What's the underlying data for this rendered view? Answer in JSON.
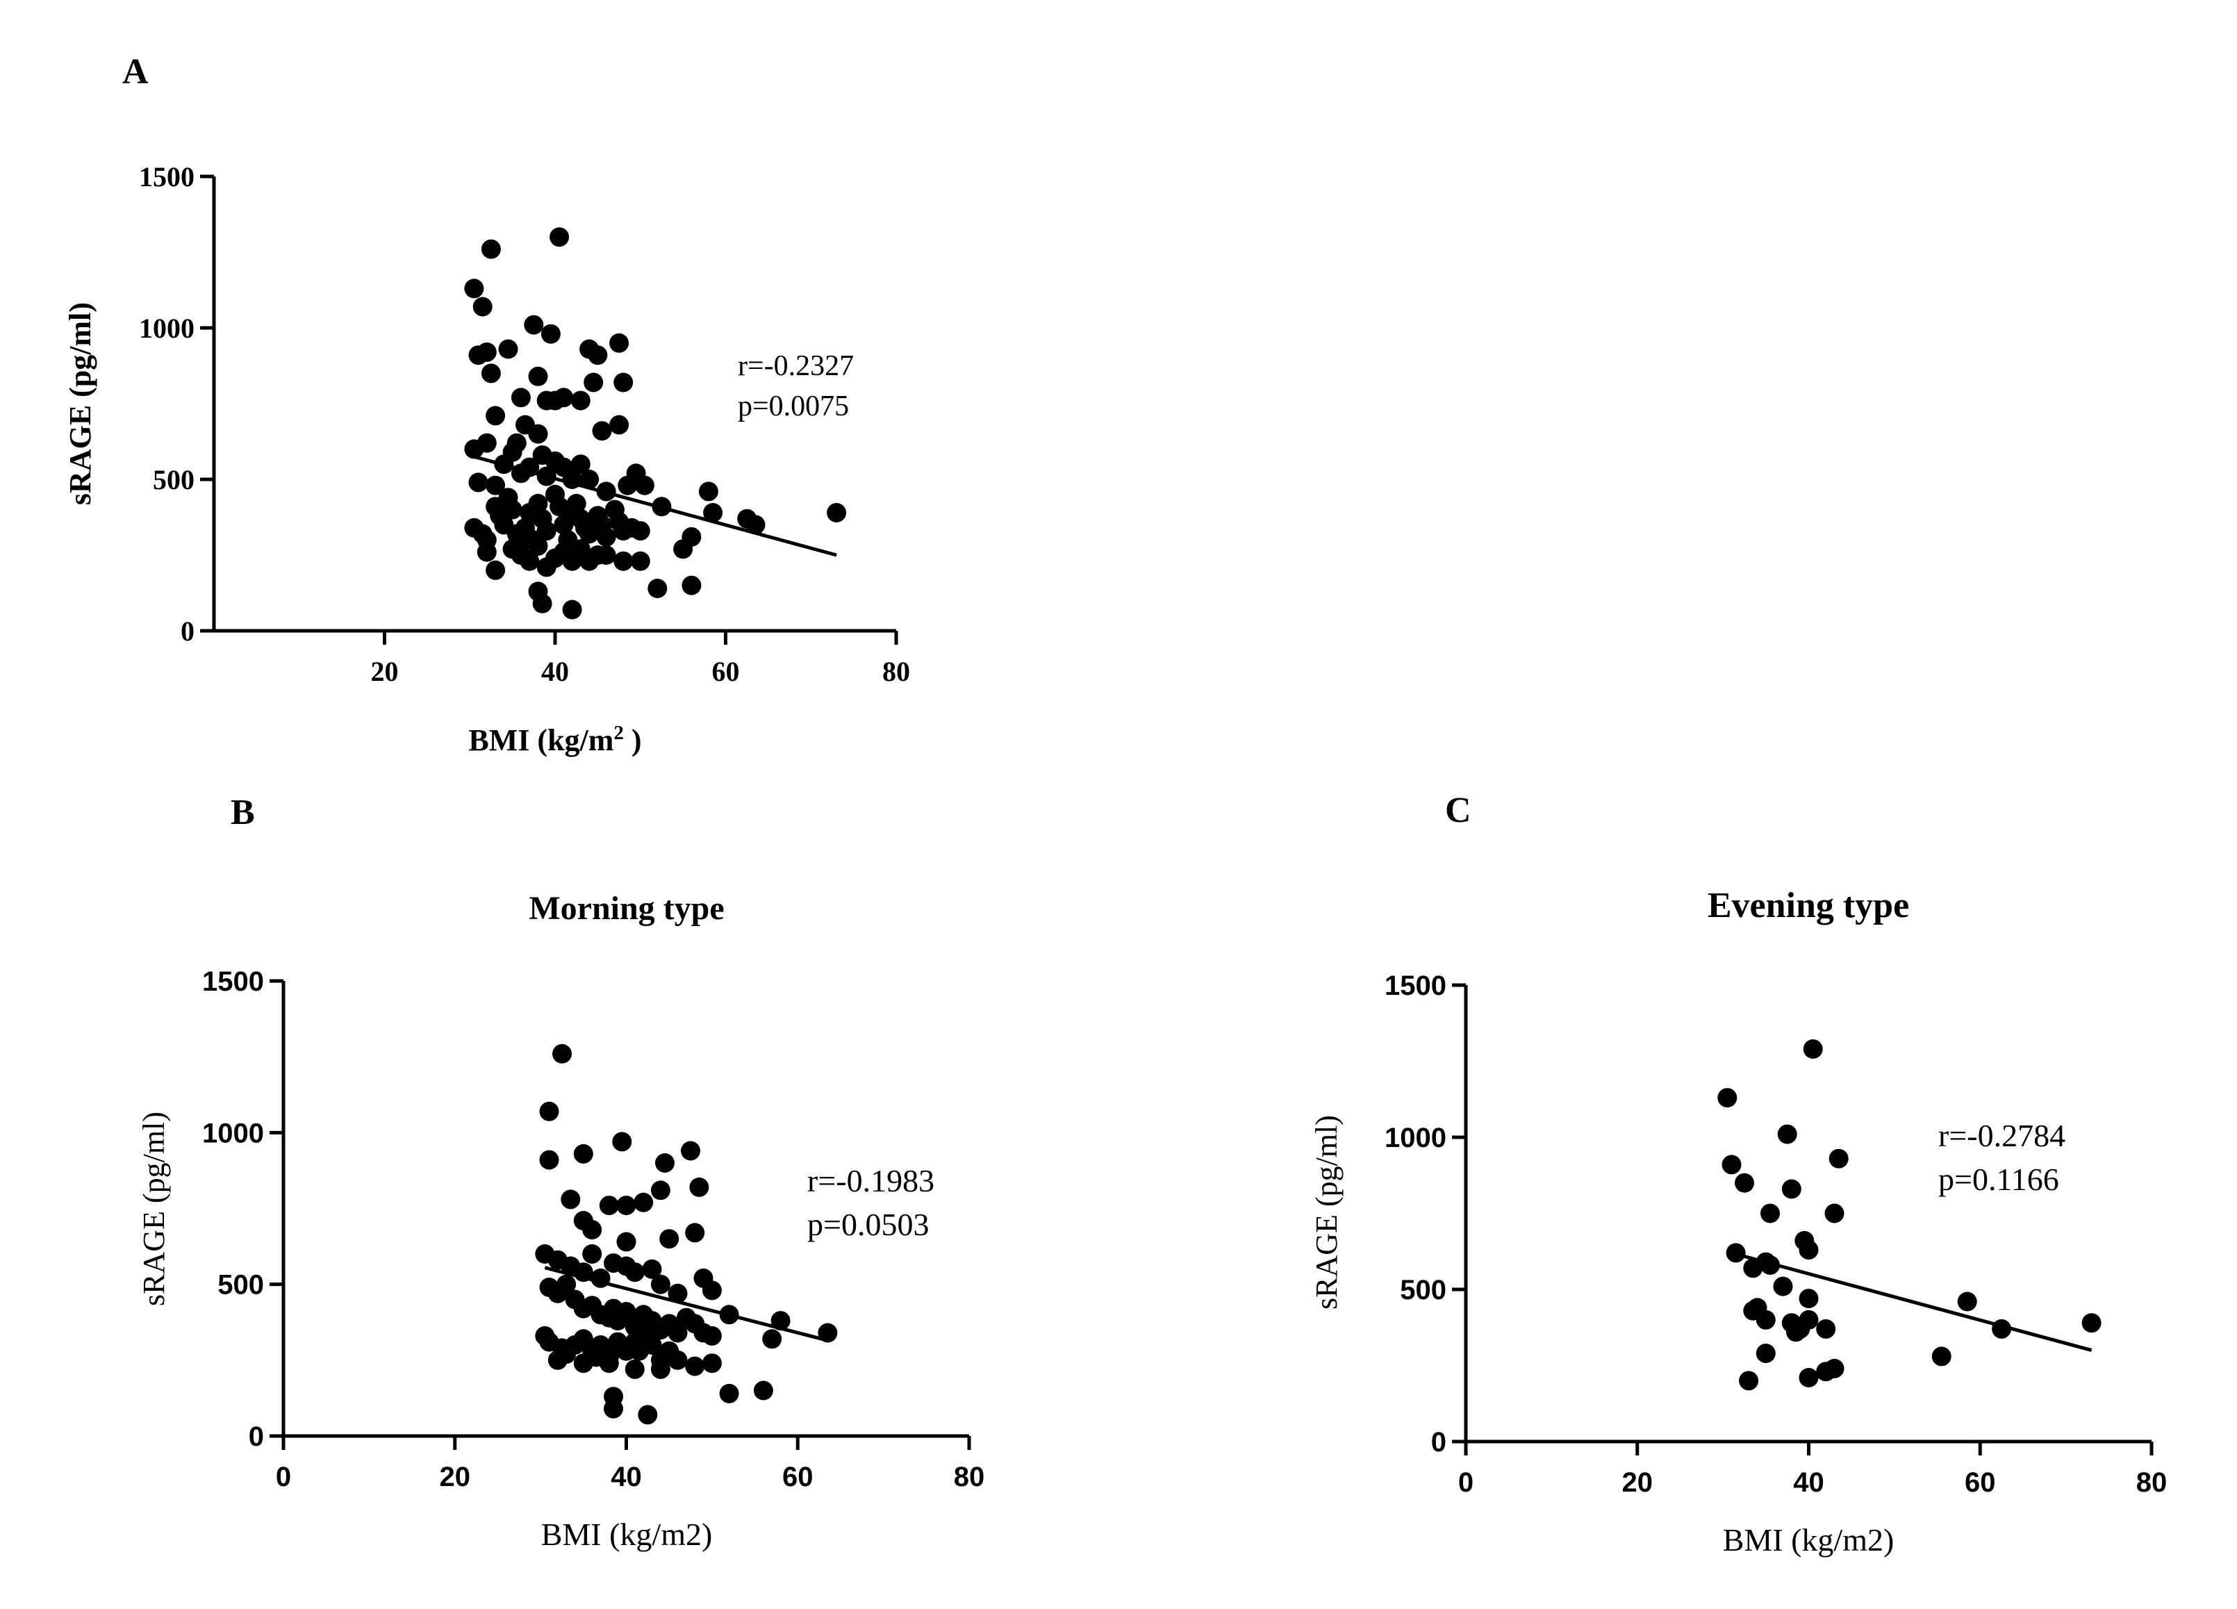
{
  "chart_data": [
    {
      "panel": "A",
      "type": "scatter",
      "title": "",
      "xlabel": "BMI (kg/m",
      "xlabel_sup": "2",
      "xlabel_end": " )",
      "ylabel": "sRAGE (pg/ml)",
      "xlim": [
        0,
        80
      ],
      "ylim": [
        0,
        1500
      ],
      "xticks": [
        20,
        40,
        60,
        80
      ],
      "yticks": [
        0,
        500,
        1000,
        1500
      ],
      "stats": [
        "r=-0.2327",
        "p=0.0075"
      ],
      "regression": {
        "x": [
          30.5,
          73
        ],
        "y": [
          575,
          250
        ]
      },
      "points": [
        [
          30.5,
          1130
        ],
        [
          31,
          910
        ],
        [
          31.5,
          1070
        ],
        [
          32.5,
          1260
        ],
        [
          32,
          920
        ],
        [
          32.5,
          850
        ],
        [
          33,
          710
        ],
        [
          34.5,
          930
        ],
        [
          37.5,
          1010
        ],
        [
          39.5,
          980
        ],
        [
          40.5,
          1300
        ],
        [
          38,
          840
        ],
        [
          36,
          770
        ],
        [
          36.5,
          680
        ],
        [
          39,
          760
        ],
        [
          40,
          760
        ],
        [
          41,
          770
        ],
        [
          43,
          760
        ],
        [
          44,
          930
        ],
        [
          45,
          910
        ],
        [
          47.5,
          950
        ],
        [
          44.5,
          820
        ],
        [
          48,
          820
        ],
        [
          47.5,
          680
        ],
        [
          45.5,
          660
        ],
        [
          30.5,
          600
        ],
        [
          31,
          490
        ],
        [
          32,
          620
        ],
        [
          33,
          480
        ],
        [
          34,
          550
        ],
        [
          35,
          590
        ],
        [
          35.5,
          620
        ],
        [
          36,
          520
        ],
        [
          37,
          540
        ],
        [
          38,
          650
        ],
        [
          38.5,
          580
        ],
        [
          39,
          510
        ],
        [
          40,
          560
        ],
        [
          41,
          540
        ],
        [
          42,
          500
        ],
        [
          43,
          550
        ],
        [
          44,
          500
        ],
        [
          46,
          460
        ],
        [
          48.5,
          480
        ],
        [
          49.5,
          520
        ],
        [
          50.5,
          480
        ],
        [
          52.5,
          410
        ],
        [
          58,
          460
        ],
        [
          58.5,
          390
        ],
        [
          62.5,
          370
        ],
        [
          63.5,
          350
        ],
        [
          73,
          390
        ],
        [
          30.5,
          340
        ],
        [
          31.5,
          320
        ],
        [
          32,
          300
        ],
        [
          33,
          410
        ],
        [
          33.5,
          380
        ],
        [
          34,
          350
        ],
        [
          34.5,
          440
        ],
        [
          35,
          400
        ],
        [
          35.5,
          320
        ],
        [
          36,
          290
        ],
        [
          36.5,
          340
        ],
        [
          37,
          390
        ],
        [
          37.5,
          300
        ],
        [
          38,
          420
        ],
        [
          38.5,
          370
        ],
        [
          39,
          330
        ],
        [
          40,
          450
        ],
        [
          40.5,
          410
        ],
        [
          41,
          350
        ],
        [
          41.5,
          300
        ],
        [
          42,
          390
        ],
        [
          42.5,
          420
        ],
        [
          43,
          370
        ],
        [
          43.5,
          340
        ],
        [
          44,
          320
        ],
        [
          45,
          380
        ],
        [
          45.5,
          350
        ],
        [
          46,
          310
        ],
        [
          47,
          400
        ],
        [
          47.5,
          360
        ],
        [
          48,
          330
        ],
        [
          49,
          340
        ],
        [
          50,
          330
        ],
        [
          32,
          260
        ],
        [
          33,
          200
        ],
        [
          35,
          270
        ],
        [
          36,
          250
        ],
        [
          37,
          230
        ],
        [
          38,
          280
        ],
        [
          39,
          210
        ],
        [
          40,
          240
        ],
        [
          41,
          260
        ],
        [
          42,
          230
        ],
        [
          43,
          270
        ],
        [
          44,
          230
        ],
        [
          45,
          250
        ],
        [
          46,
          250
        ],
        [
          48,
          230
        ],
        [
          50,
          230
        ],
        [
          55,
          270
        ],
        [
          56,
          310
        ],
        [
          38,
          130
        ],
        [
          38.5,
          90
        ],
        [
          42,
          70
        ],
        [
          52,
          140
        ],
        [
          56,
          150
        ]
      ]
    },
    {
      "panel": "B",
      "type": "scatter",
      "title": "Morning type",
      "xlabel": "BMI (kg/m2)",
      "ylabel": "sRAGE (pg/ml)",
      "xlim": [
        0,
        80
      ],
      "ylim": [
        0,
        1500
      ],
      "xticks": [
        0,
        20,
        40,
        60,
        80
      ],
      "yticks": [
        0,
        500,
        1000,
        1500
      ],
      "stats": [
        "r=-0.1983",
        "p=0.0503"
      ],
      "regression": {
        "x": [
          30.5,
          63.5
        ],
        "y": [
          555,
          315
        ]
      },
      "points": [
        [
          32.5,
          1260
        ],
        [
          31,
          1070
        ],
        [
          31,
          910
        ],
        [
          33.5,
          780
        ],
        [
          35,
          930
        ],
        [
          39.5,
          970
        ],
        [
          44.5,
          900
        ],
        [
          47.5,
          940
        ],
        [
          48.5,
          820
        ],
        [
          44,
          810
        ],
        [
          38,
          760
        ],
        [
          40,
          760
        ],
        [
          42,
          770
        ],
        [
          35,
          710
        ],
        [
          36,
          680
        ],
        [
          45,
          650
        ],
        [
          48,
          670
        ],
        [
          40,
          640
        ],
        [
          30.5,
          600
        ],
        [
          32,
          580
        ],
        [
          33.5,
          560
        ],
        [
          35,
          540
        ],
        [
          36,
          600
        ],
        [
          37,
          520
        ],
        [
          38.5,
          570
        ],
        [
          40,
          560
        ],
        [
          41,
          540
        ],
        [
          43,
          550
        ],
        [
          44,
          500
        ],
        [
          46,
          470
        ],
        [
          49,
          520
        ],
        [
          50,
          480
        ],
        [
          52,
          400
        ],
        [
          58,
          380
        ],
        [
          31,
          490
        ],
        [
          32,
          470
        ],
        [
          33,
          500
        ],
        [
          34,
          450
        ],
        [
          35,
          420
        ],
        [
          36,
          430
        ],
        [
          37,
          400
        ],
        [
          38,
          390
        ],
        [
          38.5,
          420
        ],
        [
          39,
          380
        ],
        [
          40,
          410
        ],
        [
          41,
          360
        ],
        [
          42,
          400
        ],
        [
          43,
          380
        ],
        [
          44,
          350
        ],
        [
          45,
          370
        ],
        [
          46,
          340
        ],
        [
          47,
          390
        ],
        [
          48,
          370
        ],
        [
          49,
          340
        ],
        [
          50,
          330
        ],
        [
          57,
          320
        ],
        [
          63.5,
          340
        ],
        [
          30.5,
          330
        ],
        [
          31,
          310
        ],
        [
          32.5,
          290
        ],
        [
          33,
          270
        ],
        [
          34,
          300
        ],
        [
          35,
          320
        ],
        [
          36,
          280
        ],
        [
          36.5,
          260
        ],
        [
          37,
          300
        ],
        [
          38,
          260
        ],
        [
          39,
          310
        ],
        [
          40,
          280
        ],
        [
          41,
          310
        ],
        [
          41.5,
          280
        ],
        [
          42,
          330
        ],
        [
          43,
          300
        ],
        [
          44,
          250
        ],
        [
          45,
          280
        ],
        [
          46,
          250
        ],
        [
          48,
          230
        ],
        [
          50,
          240
        ],
        [
          32,
          250
        ],
        [
          35,
          240
        ],
        [
          38,
          240
        ],
        [
          41,
          220
        ],
        [
          44,
          220
        ],
        [
          52,
          140
        ],
        [
          56,
          150
        ],
        [
          38.5,
          130
        ],
        [
          38.5,
          90
        ],
        [
          42.5,
          70
        ]
      ]
    },
    {
      "panel": "C",
      "type": "scatter",
      "title": "Evening type",
      "xlabel": "BMI (kg/m2)",
      "ylabel": "sRAGE  (pg/ml)",
      "xlim": [
        0,
        80
      ],
      "ylim": [
        0,
        1500
      ],
      "xticks": [
        0,
        20,
        40,
        60,
        80
      ],
      "yticks": [
        0,
        500,
        1000,
        1500
      ],
      "stats": [
        "r=-0.2784",
        "p=0.1166"
      ],
      "regression": {
        "x": [
          31,
          73
        ],
        "y": [
          620,
          300
        ]
      },
      "points": [
        [
          30.5,
          1130
        ],
        [
          40.5,
          1290
        ],
        [
          37.5,
          1010
        ],
        [
          31,
          910
        ],
        [
          43.5,
          930
        ],
        [
          32.5,
          850
        ],
        [
          38,
          830
        ],
        [
          35.5,
          750
        ],
        [
          43,
          750
        ],
        [
          39.5,
          660
        ],
        [
          40,
          630
        ],
        [
          31.5,
          620
        ],
        [
          35,
          590
        ],
        [
          33.5,
          570
        ],
        [
          35.5,
          580
        ],
        [
          37,
          510
        ],
        [
          40,
          470
        ],
        [
          58.5,
          460
        ],
        [
          33.5,
          430
        ],
        [
          34,
          440
        ],
        [
          35,
          400
        ],
        [
          38,
          390
        ],
        [
          39,
          370
        ],
        [
          40,
          400
        ],
        [
          38.5,
          360
        ],
        [
          42,
          370
        ],
        [
          62.5,
          370
        ],
        [
          73,
          390
        ],
        [
          35,
          290
        ],
        [
          55.5,
          280
        ],
        [
          43,
          240
        ],
        [
          42,
          230
        ],
        [
          40,
          210
        ],
        [
          33,
          200
        ]
      ]
    }
  ]
}
